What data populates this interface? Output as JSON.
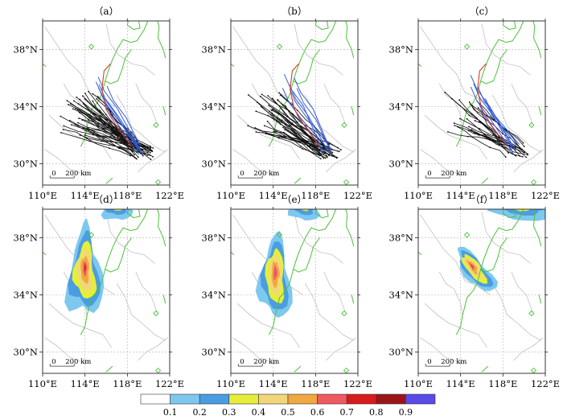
{
  "panels": [
    {
      "label": "（a）",
      "kind": "tracks",
      "density": 1.0
    },
    {
      "label": "（b）",
      "kind": "tracks",
      "density": 0.8
    },
    {
      "label": "（c）",
      "kind": "tracks",
      "density": 0.5
    },
    {
      "label": "（d）",
      "kind": "probability",
      "variant": "d"
    },
    {
      "label": "（e）",
      "kind": "probability",
      "variant": "e"
    },
    {
      "label": "（f）",
      "kind": "probability",
      "variant": "f"
    }
  ],
  "axes": {
    "lon_ticks": [
      "110°E",
      "114°E",
      "118°E",
      "122°E"
    ],
    "lat_ticks": [
      "38°N",
      "34°N",
      "30°N"
    ],
    "lon_values": [
      110,
      114,
      118,
      122
    ],
    "lat_values": [
      38,
      34,
      30
    ],
    "lon_range": [
      110,
      122
    ],
    "lat_range": [
      28.5,
      40
    ]
  },
  "scale_bar": {
    "zero": "0",
    "label": "200 km"
  },
  "colorbar": {
    "colors": [
      "#ffffff",
      "#7ec8f0",
      "#4a9de0",
      "#e6ee3a",
      "#f2d77a",
      "#f0a840",
      "#ee5a60",
      "#d81c1c",
      "#9a1418",
      "#5a4ae8"
    ],
    "labels": [
      "0.1",
      "0.2",
      "0.3",
      "0.4",
      "0.5",
      "0.6",
      "0.7",
      "0.8",
      "0.9"
    ]
  },
  "colors": {
    "track_black": "#111111",
    "track_blue": "#3a5fd8",
    "track_red": "#d83a2a",
    "boundary_green": "#4cc23a",
    "boundary_gray": "#b8b8b8",
    "grid": "#bdbdbd"
  }
}
